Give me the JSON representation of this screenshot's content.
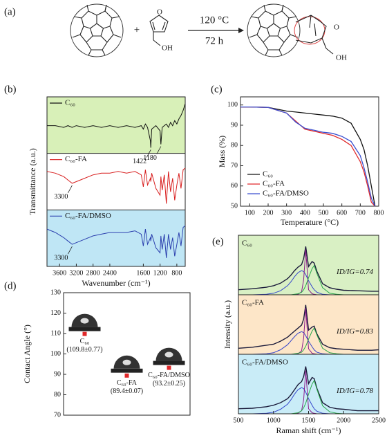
{
  "scheme": {
    "label": "(a)",
    "plus": "+",
    "condition_top": "120 °C",
    "condition_bottom": "72 h",
    "reactant_labels": [
      "O",
      "OH"
    ],
    "product_labels": [
      "O",
      "OH"
    ]
  },
  "chart_data": [
    {
      "type": "line",
      "label": "(b)",
      "xlabel": "Wavenumber (cm⁻¹)",
      "ylabel": "Transmittance (a.u.)",
      "x": [
        3900,
        3700,
        3500,
        3400,
        3300,
        3200,
        3000,
        2800,
        2600,
        2400,
        2200,
        2000,
        1800,
        1650,
        1600,
        1550,
        1500,
        1430,
        1422,
        1400,
        1300,
        1200,
        1180,
        1150,
        1100,
        1050,
        1000,
        950,
        900,
        850,
        800,
        750,
        700,
        650,
        600
      ],
      "xlim": [
        3900,
        600
      ],
      "xticks": [
        3600,
        3200,
        2800,
        2400,
        1600,
        1200,
        800
      ],
      "ylim": [
        0,
        10
      ],
      "bands": [
        "#d8f0b8",
        "#ffffff",
        "#bfe6f5"
      ],
      "series": [
        {
          "name": "C₆₀",
          "color": "#111111",
          "peaks": [
            1422,
            1180
          ],
          "values": [
            8.3,
            8.3,
            8.2,
            8.3,
            8.2,
            8.3,
            8.2,
            8.3,
            8.2,
            8.3,
            8.2,
            8.3,
            8.2,
            8.3,
            8.1,
            8.4,
            8.2,
            7.4,
            7.0,
            8.1,
            8.3,
            8.0,
            7.2,
            8.2,
            8.3,
            8.4,
            8.2,
            8.5,
            8.3,
            8.6,
            8.4,
            8.7,
            8.9,
            9.2,
            9.6
          ]
        },
        {
          "name": "C₆₀-FA",
          "color": "#d81e1e",
          "peaks": [
            3300
          ],
          "values": [
            5.6,
            5.5,
            5.3,
            5.1,
            4.9,
            5.0,
            5.2,
            5.4,
            5.5,
            5.5,
            5.6,
            5.5,
            5.6,
            5.4,
            4.7,
            5.7,
            4.8,
            5.2,
            5.0,
            5.5,
            4.6,
            4.2,
            5.3,
            4.5,
            5.4,
            3.7,
            5.6,
            4.4,
            5.2,
            3.9,
            4.8,
            5.5,
            4.6,
            5.7,
            5.8
          ]
        },
        {
          "name": "C₆₀-FA/DMSO",
          "color": "#2b3fae",
          "peaks": [
            3300
          ],
          "values": [
            2.2,
            2.0,
            1.7,
            1.5,
            1.3,
            1.4,
            1.6,
            1.8,
            1.9,
            2.0,
            2.0,
            2.0,
            2.1,
            1.9,
            1.2,
            2.2,
            1.3,
            1.7,
            1.5,
            1.9,
            1.1,
            0.8,
            1.8,
            1.0,
            1.9,
            0.5,
            1.9,
            1.0,
            1.7,
            0.6,
            1.3,
            2.0,
            1.2,
            2.3,
            2.4
          ]
        }
      ]
    },
    {
      "type": "line",
      "label": "(c)",
      "xlabel": "Temperature (°C)",
      "ylabel": "Mass (%)",
      "x": [
        50,
        100,
        200,
        300,
        350,
        400,
        450,
        500,
        550,
        600,
        650,
        700,
        720,
        740,
        760,
        780
      ],
      "xlim": [
        50,
        800
      ],
      "xticks": [
        100,
        200,
        300,
        400,
        500,
        600,
        700,
        800
      ],
      "ylim": [
        50,
        104
      ],
      "yticks": [
        50,
        60,
        70,
        80,
        90,
        100
      ],
      "legend": "lower left",
      "series": [
        {
          "name": "C₆₀",
          "color": "#111111",
          "values": [
            99,
            99,
            98.8,
            97,
            96.5,
            96,
            95.5,
            95,
            94.5,
            93.5,
            91,
            83,
            78,
            70,
            60,
            50
          ]
        },
        {
          "name": "C₆₀-FA",
          "color": "#e0282a",
          "values": [
            99,
            99,
            98.8,
            96,
            92,
            88,
            87,
            86,
            85,
            83,
            80,
            72,
            67,
            60,
            52,
            50
          ]
        },
        {
          "name": "C₆₀-FA/DMSO",
          "color": "#3a4fd0",
          "values": [
            99,
            99,
            98.8,
            96,
            91.5,
            88.5,
            87.5,
            86.5,
            86,
            84.5,
            82,
            75,
            69,
            62,
            54,
            50
          ]
        }
      ]
    },
    {
      "type": "scatter",
      "label": "(d)",
      "ylabel": "Contact Angle (°)",
      "categories": [
        null,
        null,
        null
      ],
      "names": [
        "C₆₀",
        "C₆₀-FA",
        "C₆₀-FA/DMSO"
      ],
      "values": [
        109.8,
        89.4,
        93.2
      ],
      "errors": [
        0.77,
        0.07,
        0.25
      ],
      "value_labels": [
        "(109.8±0.77)",
        "(89.4±0.07)",
        "(93.2±0.25)"
      ],
      "color": "#e0282a",
      "ylim": [
        70,
        130
      ],
      "yticks": [
        70,
        80,
        90,
        100,
        110,
        120,
        130
      ]
    },
    {
      "type": "line",
      "label": "(e)",
      "xlabel": "Raman shift (cm⁻¹)",
      "ylabel": "Intensity (a.u.)",
      "x": [
        500,
        700,
        900,
        1000,
        1100,
        1200,
        1250,
        1300,
        1350,
        1400,
        1430,
        1460,
        1500,
        1550,
        1580,
        1620,
        1700,
        1800,
        1900,
        2000,
        2200,
        2400,
        2500
      ],
      "xlim": [
        500,
        2500
      ],
      "xticks": [
        500,
        1000,
        1500,
        2000,
        2500
      ],
      "ylim": [
        0,
        11
      ],
      "panels": [
        {
          "name": "C₆₀",
          "ratio": "ID/IG=0.74",
          "background": "#d9f0c4",
          "series": [
            {
              "color": "#1a1a3a",
              "values": [
                1.0,
                1.2,
                1.5,
                1.8,
                2.3,
                3.2,
                3.9,
                4.8,
                5.5,
                6.0,
                7.2,
                9.6,
                5.6,
                6.6,
                6.3,
                4.6,
                2.2,
                1.4,
                1.1,
                0.9,
                0.8,
                0.7,
                0.7
              ]
            },
            {
              "color": "#3344cc",
              "values": [
                0,
                0,
                0.1,
                0.3,
                0.8,
                1.8,
                2.6,
                3.6,
                4.4,
                4.8,
                4.6,
                4.0,
                2.8,
                1.6,
                1.0,
                0.5,
                0.1,
                0,
                0,
                0,
                0,
                0,
                0
              ]
            },
            {
              "color": "#8a1a8a",
              "values": [
                0,
                0,
                0,
                0,
                0,
                0,
                0,
                0,
                0.1,
                0.6,
                3.0,
                9.0,
                1.0,
                0.2,
                0.1,
                0,
                0,
                0,
                0,
                0,
                0,
                0,
                0
              ]
            },
            {
              "color": "#2aa84a",
              "values": [
                0,
                0,
                0,
                0,
                0,
                0,
                0,
                0.1,
                0.2,
                0.5,
                1.0,
                1.8,
                3.4,
                5.2,
                5.8,
                4.2,
                1.4,
                0.3,
                0.1,
                0,
                0,
                0,
                0
              ]
            }
          ]
        },
        {
          "name": "C₆₀-FA",
          "ratio": "ID/IG=0.83",
          "background": "#fde6c8",
          "series": [
            {
              "color": "#1a1a3a",
              "values": [
                1.2,
                1.4,
                1.8,
                2.0,
                2.6,
                3.4,
                4.0,
                4.6,
                5.2,
                5.8,
                7.0,
                9.8,
                4.8,
                5.4,
                5.6,
                4.0,
                2.0,
                1.3,
                1.1,
                1.0,
                0.8,
                0.8,
                0.9
              ]
            },
            {
              "color": "#3344cc",
              "values": [
                0,
                0,
                0.1,
                0.3,
                0.9,
                1.9,
                2.7,
                3.5,
                4.2,
                4.5,
                4.3,
                3.7,
                2.6,
                1.5,
                0.9,
                0.4,
                0.1,
                0,
                0,
                0,
                0,
                0,
                0
              ]
            },
            {
              "color": "#8a1a8a",
              "values": [
                0,
                0,
                0,
                0,
                0,
                0,
                0,
                0,
                0.1,
                0.7,
                3.2,
                9.2,
                1.1,
                0.2,
                0.1,
                0,
                0,
                0,
                0,
                0,
                0,
                0,
                0
              ]
            },
            {
              "color": "#2aa84a",
              "values": [
                0,
                0,
                0,
                0,
                0,
                0,
                0,
                0.1,
                0.2,
                0.4,
                0.9,
                1.6,
                3.0,
                4.6,
                5.2,
                3.8,
                1.2,
                0.3,
                0.1,
                0,
                0,
                0,
                0
              ]
            }
          ]
        },
        {
          "name": "C₆₀-FA/DMSO",
          "ratio": "ID/IG=0.78",
          "background": "#c9ecf7",
          "series": [
            {
              "color": "#1a1a3a",
              "values": [
                1.0,
                1.1,
                1.4,
                1.7,
                2.2,
                3.0,
                3.8,
                4.8,
                5.8,
                6.4,
                7.4,
                9.4,
                6.0,
                7.2,
                7.0,
                5.0,
                2.2,
                1.3,
                1.0,
                0.9,
                0.6,
                0.6,
                0.6
              ]
            },
            {
              "color": "#3344cc",
              "values": [
                0,
                0,
                0.1,
                0.3,
                0.9,
                1.9,
                2.8,
                3.9,
                4.8,
                5.2,
                5.0,
                4.3,
                3.0,
                1.7,
                1.0,
                0.5,
                0.1,
                0,
                0,
                0,
                0,
                0,
                0
              ]
            },
            {
              "color": "#8a1a8a",
              "values": [
                0,
                0,
                0,
                0,
                0,
                0,
                0,
                0,
                0.1,
                0.6,
                2.8,
                8.6,
                1.0,
                0.2,
                0.1,
                0,
                0,
                0,
                0,
                0,
                0,
                0,
                0
              ]
            },
            {
              "color": "#2aa84a",
              "values": [
                0,
                0,
                0,
                0,
                0,
                0,
                0,
                0.1,
                0.2,
                0.6,
                1.2,
                2.1,
                3.9,
                5.9,
                6.6,
                4.8,
                1.6,
                0.4,
                0.1,
                0,
                0,
                0,
                0
              ]
            }
          ]
        }
      ]
    }
  ]
}
